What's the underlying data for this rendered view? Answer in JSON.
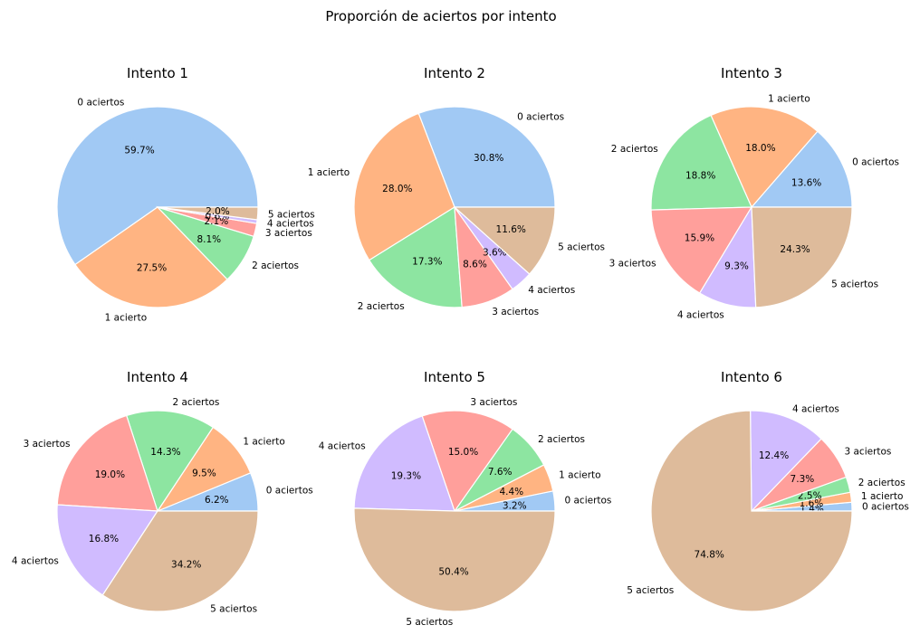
{
  "chart_data": {
    "title": "Proporción de aciertos por intento",
    "type": "pie",
    "colors": [
      "#a1c9f4",
      "#ffb482",
      "#8de5a1",
      "#ff9f9b",
      "#d0bbff",
      "#debb9b"
    ],
    "charts": [
      {
        "title": "Intento 1",
        "type": "pie",
        "labels": [
          "0 aciertos",
          "1 acierto",
          "2 aciertos",
          "3 aciertos",
          "4 aciertos",
          "5 aciertos"
        ],
        "values": [
          59.7,
          27.5,
          8.1,
          2.1,
          0.6,
          2.0
        ],
        "pct_labels": [
          "59.7%",
          "27.5%",
          "8.1%",
          "2.1%",
          "0.6%",
          "2.0%"
        ]
      },
      {
        "title": "Intento 2",
        "type": "pie",
        "labels": [
          "0 aciertos",
          "1 acierto",
          "2 aciertos",
          "3 aciertos",
          "4 aciertos",
          "5 aciertos"
        ],
        "values": [
          30.8,
          28.0,
          17.3,
          8.6,
          3.6,
          11.6
        ],
        "pct_labels": [
          "30.8%",
          "28.0%",
          "17.3%",
          "8.6%",
          "3.6%",
          "11.6%"
        ]
      },
      {
        "title": "Intento 3",
        "type": "pie",
        "labels": [
          "0 aciertos",
          "1 acierto",
          "2 aciertos",
          "3 aciertos",
          "4 aciertos",
          "5 aciertos"
        ],
        "values": [
          13.6,
          18.0,
          18.8,
          15.9,
          9.3,
          24.3
        ],
        "pct_labels": [
          "13.6%",
          "18.0%",
          "18.8%",
          "15.9%",
          "9.3%",
          "24.3%"
        ]
      },
      {
        "title": "Intento 4",
        "type": "pie",
        "labels": [
          "0 aciertos",
          "1 acierto",
          "2 aciertos",
          "3 aciertos",
          "4 aciertos",
          "5 aciertos"
        ],
        "values": [
          6.2,
          9.5,
          14.3,
          19.0,
          16.8,
          34.2
        ],
        "pct_labels": [
          "6.2%",
          "9.5%",
          "14.3%",
          "19.0%",
          "16.8%",
          "34.2%"
        ]
      },
      {
        "title": "Intento 5",
        "type": "pie",
        "labels": [
          "0 aciertos",
          "1 acierto",
          "2 aciertos",
          "3 aciertos",
          "4 aciertos",
          "5 aciertos"
        ],
        "values": [
          3.2,
          4.4,
          7.6,
          15.0,
          19.3,
          50.4
        ],
        "pct_labels": [
          "3.2%",
          "4.4%",
          "7.6%",
          "15.0%",
          "19.3%",
          "50.4%"
        ]
      },
      {
        "title": "Intento 6",
        "type": "pie",
        "labels": [
          "0 aciertos",
          "1 acierto",
          "2 aciertos",
          "3 aciertos",
          "4 aciertos",
          "5 aciertos"
        ],
        "values": [
          1.4,
          1.6,
          2.5,
          7.3,
          12.4,
          74.8
        ],
        "pct_labels": [
          "1.4%",
          "1.6%",
          "2.5%",
          "7.3%",
          "12.4%",
          "74.8%"
        ]
      }
    ]
  }
}
